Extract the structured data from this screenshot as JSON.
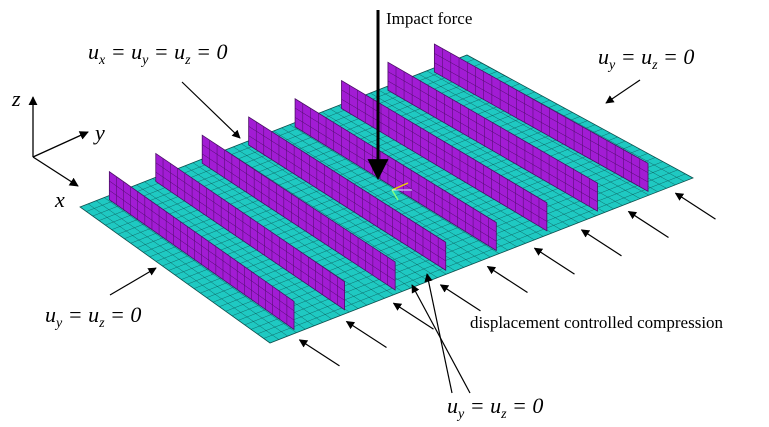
{
  "diagram": {
    "impact_label": "Impact force",
    "compression_label": "displacement controlled compression",
    "bc_all": {
      "a": "u",
      "a_sub": "x",
      "b": "u",
      "b_sub": "y",
      "c": "u",
      "c_sub": "z",
      "rhs": "0"
    },
    "bc_top_right": {
      "a": "u",
      "a_sub": "y",
      "b": "u",
      "b_sub": "z",
      "rhs": "0"
    },
    "bc_left": {
      "a": "u",
      "a_sub": "y",
      "b": "u",
      "b_sub": "z",
      "rhs": "0"
    },
    "bc_bottom": {
      "a": "u",
      "a_sub": "y",
      "b": "u",
      "b_sub": "z",
      "rhs": "0"
    },
    "axes": {
      "z": "z",
      "y": "y",
      "x": "x"
    },
    "colors": {
      "plate": "#1fc9c2",
      "mesh": "#0c4f4d",
      "stiffener": "#a21cd4",
      "stiffener_mesh": "#4b0f66"
    },
    "stiffener_count": 8
  }
}
